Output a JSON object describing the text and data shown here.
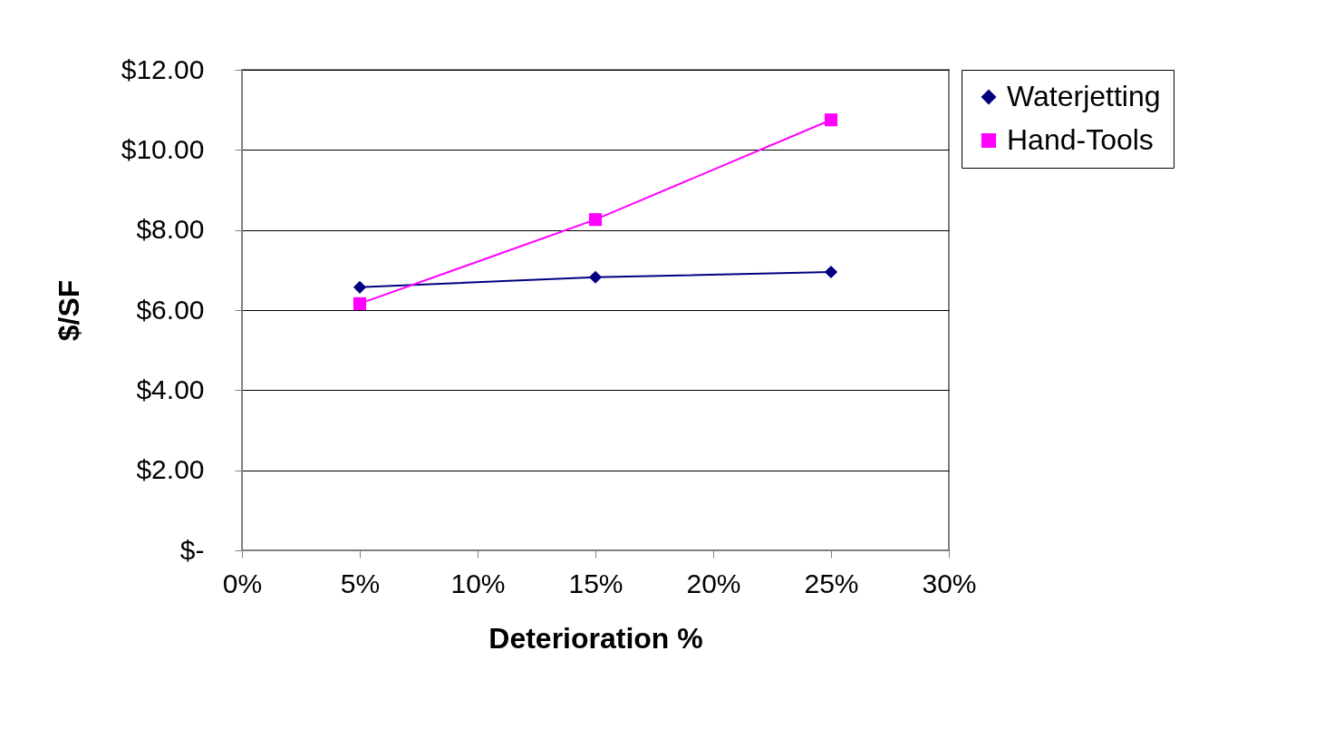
{
  "chart_data": {
    "type": "line",
    "xlabel": "Deterioration %",
    "ylabel": "$/SF",
    "x": [
      5,
      15,
      25
    ],
    "series": [
      {
        "name": "Waterjetting",
        "color": "#000080",
        "marker": "diamond",
        "values": [
          6.57,
          6.82,
          6.95
        ]
      },
      {
        "name": "Hand-Tools",
        "color": "#ff00ff",
        "marker": "square",
        "values": [
          6.16,
          8.26,
          10.75
        ]
      }
    ],
    "xlim": [
      0,
      30
    ],
    "xticks": [
      {
        "value": 0,
        "label": "0%"
      },
      {
        "value": 5,
        "label": "5%"
      },
      {
        "value": 10,
        "label": "10%"
      },
      {
        "value": 15,
        "label": "15%"
      },
      {
        "value": 20,
        "label": "20%"
      },
      {
        "value": 25,
        "label": "25%"
      },
      {
        "value": 30,
        "label": "30%"
      }
    ],
    "ylim": [
      0,
      12
    ],
    "yticks": [
      {
        "value": 0,
        "label": "$-"
      },
      {
        "value": 2,
        "label": "$2.00"
      },
      {
        "value": 4,
        "label": "$4.00"
      },
      {
        "value": 6,
        "label": "$6.00"
      },
      {
        "value": 8,
        "label": "$8.00"
      },
      {
        "value": 10,
        "label": "$10.00"
      },
      {
        "value": 12,
        "label": "$12.00"
      }
    ],
    "grid": "y",
    "legend": "right"
  }
}
